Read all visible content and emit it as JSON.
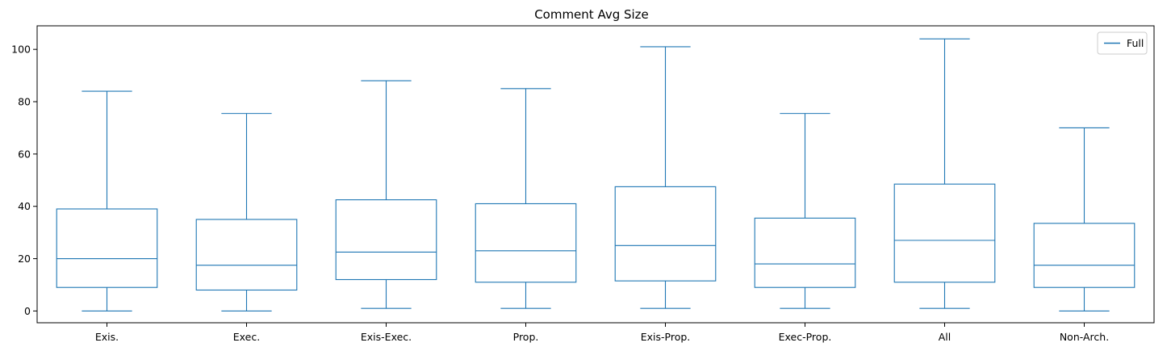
{
  "chart_data": {
    "type": "box",
    "title": "Comment Avg Size",
    "xlabel": "",
    "ylabel": "",
    "ylim": [
      -4.5,
      109
    ],
    "yticks": [
      0,
      20,
      40,
      60,
      80,
      100
    ],
    "grid": false,
    "legend": {
      "position": "top-right",
      "entries": [
        "Full"
      ]
    },
    "color": "#1f77b4",
    "categories": [
      "Exis.",
      "Exec.",
      "Exis-Exec.",
      "Prop.",
      "Exis-Prop.",
      "Exec-Prop.",
      "All",
      "Non-Arch."
    ],
    "series": [
      {
        "name": "Full",
        "boxes": [
          {
            "whisker_low": 0,
            "q1": 9,
            "median": 20,
            "q3": 39,
            "whisker_high": 84
          },
          {
            "whisker_low": 0,
            "q1": 8,
            "median": 17.5,
            "q3": 35,
            "whisker_high": 75.5
          },
          {
            "whisker_low": 1,
            "q1": 12,
            "median": 22.5,
            "q3": 42.5,
            "whisker_high": 88
          },
          {
            "whisker_low": 1,
            "q1": 11,
            "median": 23,
            "q3": 41,
            "whisker_high": 85
          },
          {
            "whisker_low": 1,
            "q1": 11.5,
            "median": 25,
            "q3": 47.5,
            "whisker_high": 101
          },
          {
            "whisker_low": 1,
            "q1": 9,
            "median": 18,
            "q3": 35.5,
            "whisker_high": 75.5
          },
          {
            "whisker_low": 1,
            "q1": 11,
            "median": 27,
            "q3": 48.5,
            "whisker_high": 104
          },
          {
            "whisker_low": 0,
            "q1": 9,
            "median": 17.5,
            "q3": 33.5,
            "whisker_high": 70
          }
        ]
      }
    ]
  }
}
